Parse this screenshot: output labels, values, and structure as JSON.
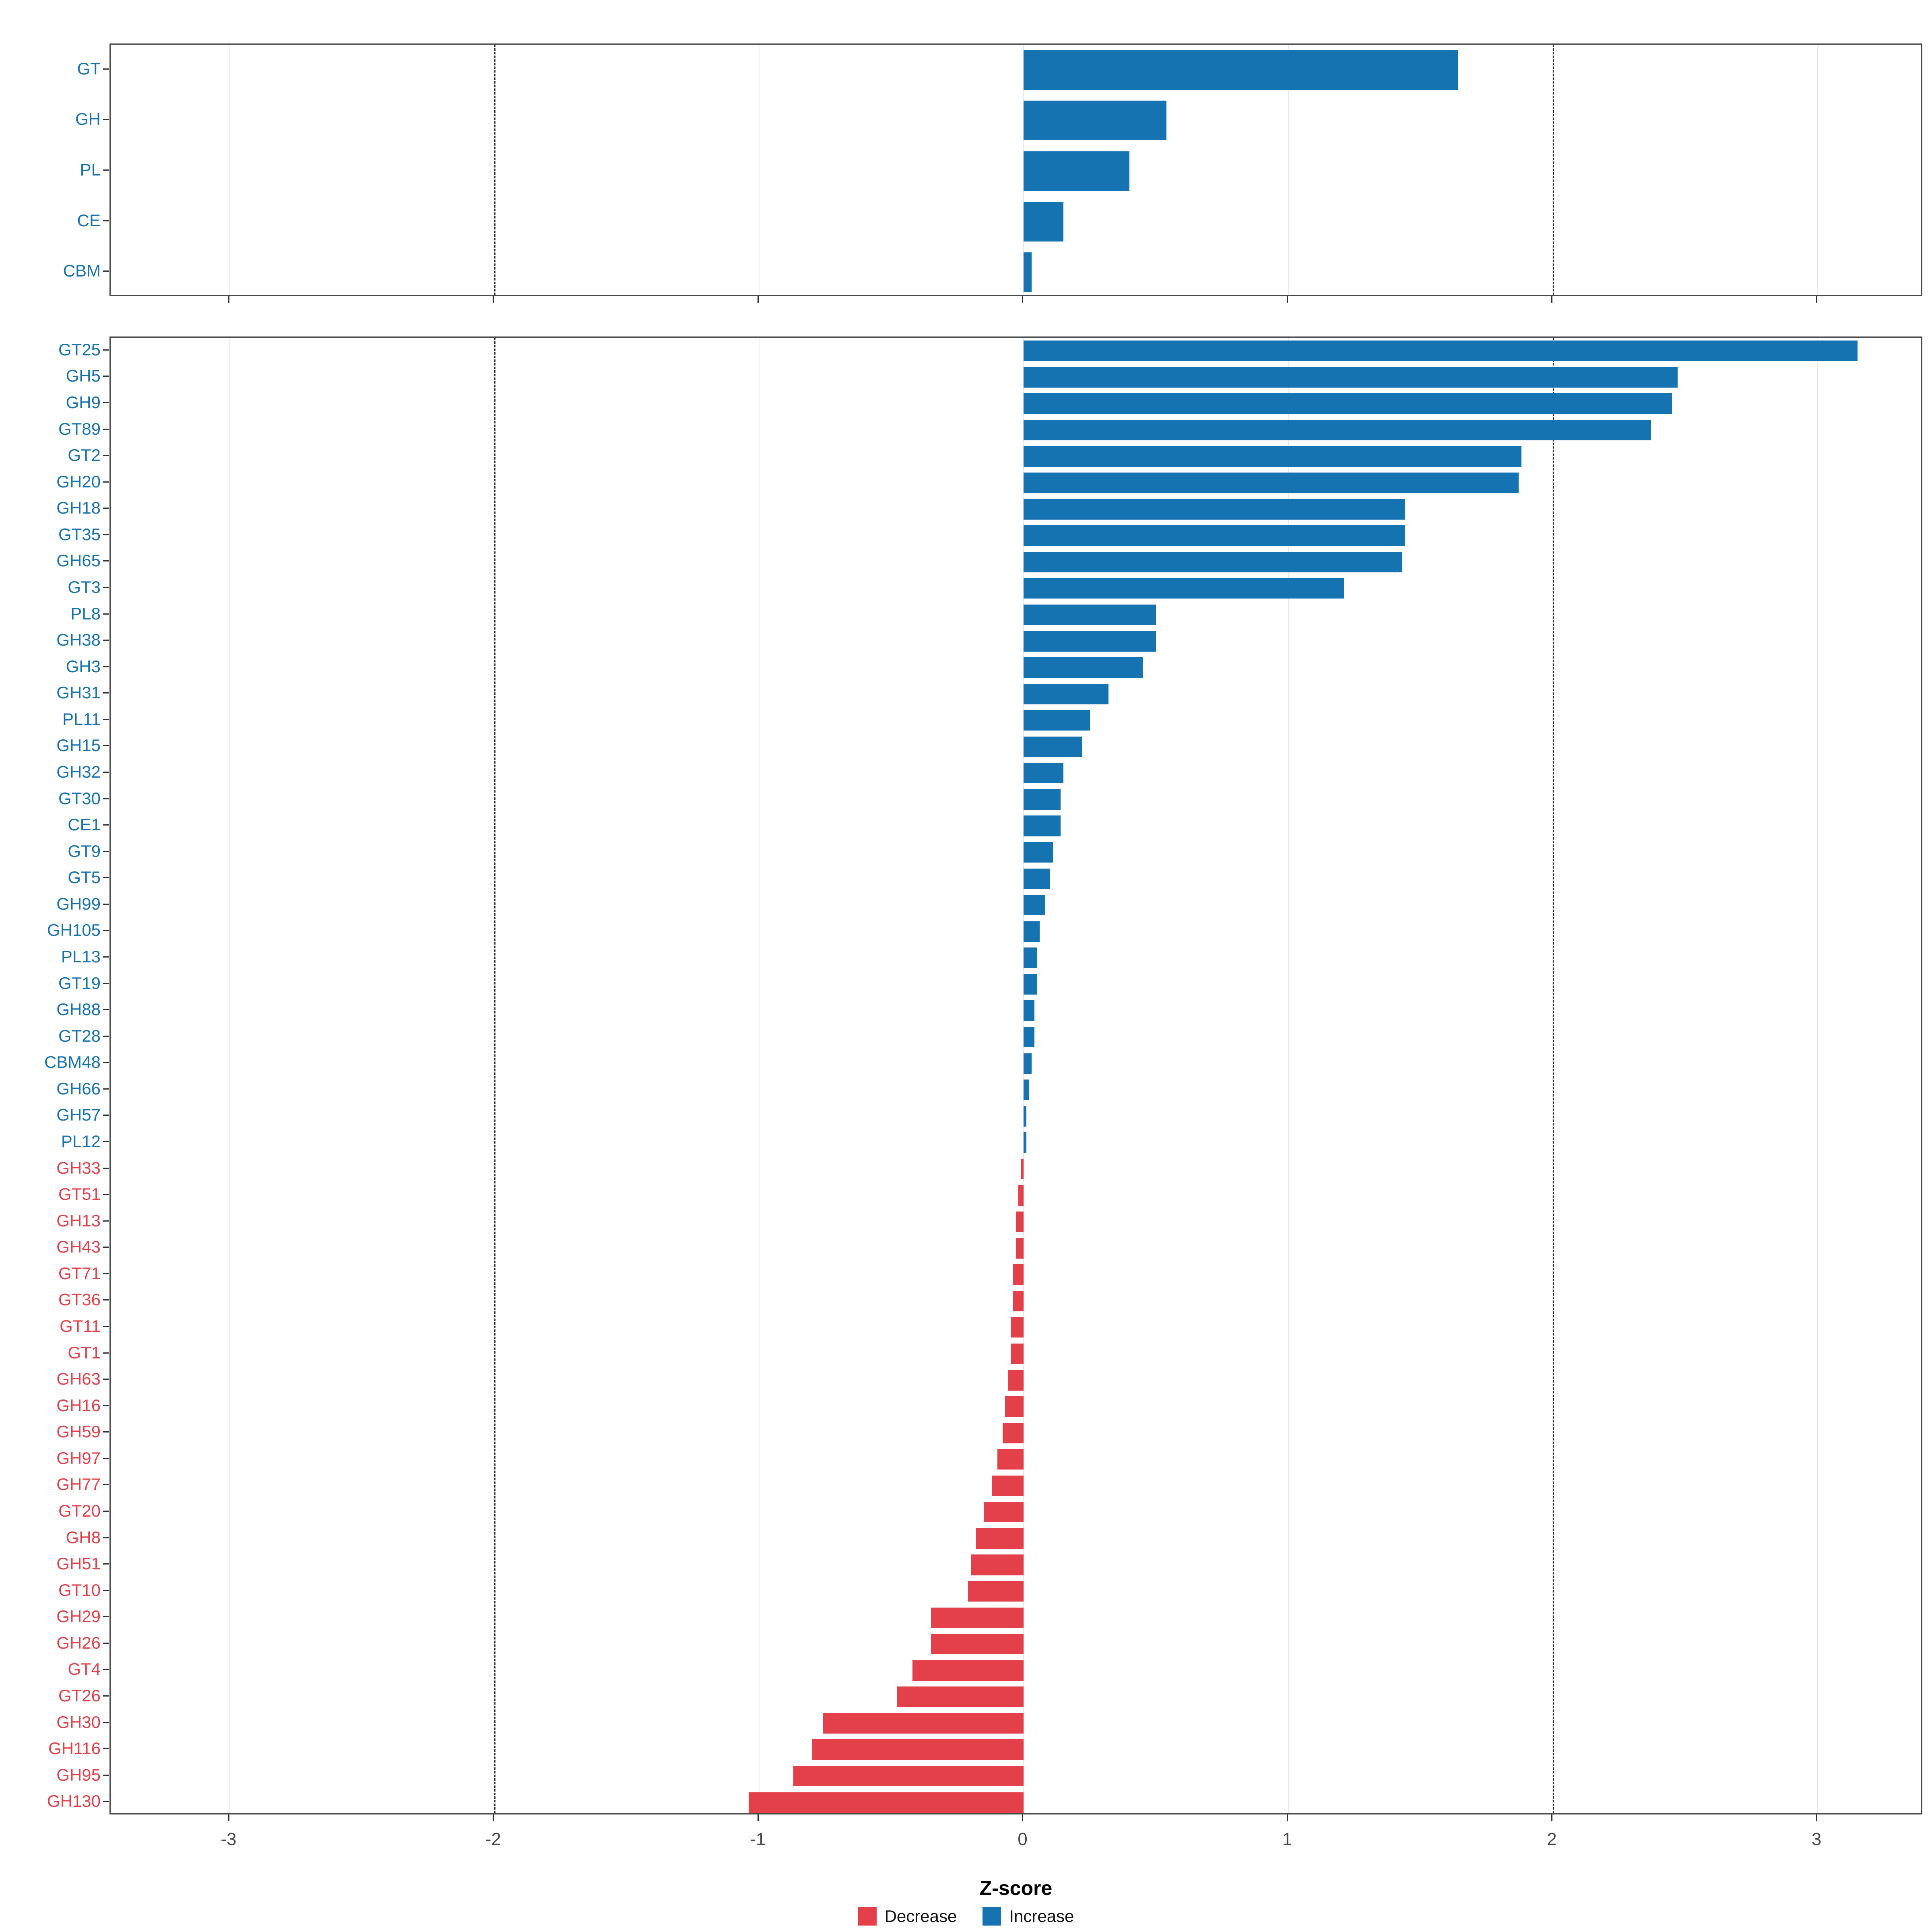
{
  "figure": {
    "x_axis": {
      "title": "Z-score",
      "tick_labels": [
        "-3",
        "-2",
        "-1",
        "0",
        "1",
        "2",
        "3"
      ],
      "tick_values": [
        -3,
        -2,
        -1,
        0,
        1,
        2,
        3
      ],
      "xlim": [
        -3.45,
        3.4
      ],
      "dashed_lines": [
        -2,
        2
      ]
    },
    "legend": {
      "items": [
        {
          "label": "Decrease",
          "color": "#E4404A"
        },
        {
          "label": "Increase",
          "color": "#1673B2"
        }
      ]
    },
    "colors": {
      "increase": "#1673B2",
      "decrease": "#E4404A"
    }
  },
  "chart_data": [
    {
      "type": "bar",
      "orientation": "horizontal",
      "panel": "cazyme-class",
      "categories": [
        "GT",
        "GH",
        "PL",
        "CE",
        "CBM"
      ],
      "values": [
        1.64,
        0.54,
        0.4,
        0.15,
        0.03
      ],
      "xlim": [
        -3.45,
        3.4
      ],
      "xlabel": "Z-score",
      "grid": true,
      "legend_position": "bottom"
    },
    {
      "type": "bar",
      "orientation": "horizontal",
      "panel": "cazyme-family",
      "categories": [
        "GT25",
        "GH5",
        "GH9",
        "GT89",
        "GT2",
        "GH20",
        "GH18",
        "GT35",
        "GH65",
        "GT3",
        "PL8",
        "GH38",
        "GH3",
        "GH31",
        "PL11",
        "GH15",
        "GH32",
        "GT30",
        "CE1",
        "GT9",
        "GT5",
        "GH99",
        "GH105",
        "PL13",
        "GT19",
        "GH88",
        "GT28",
        "CBM48",
        "GH66",
        "GH57",
        "PL12",
        "GH33",
        "GT51",
        "GH13",
        "GH43",
        "GT71",
        "GT36",
        "GT11",
        "GT1",
        "GH63",
        "GH16",
        "GH59",
        "GH97",
        "GH77",
        "GT20",
        "GH8",
        "GH51",
        "GT10",
        "GH29",
        "GH26",
        "GT4",
        "GT26",
        "GH30",
        "GH116",
        "GH95",
        "GH130"
      ],
      "values": [
        3.15,
        2.47,
        2.45,
        2.37,
        1.88,
        1.87,
        1.44,
        1.44,
        1.43,
        1.21,
        0.5,
        0.5,
        0.45,
        0.32,
        0.25,
        0.22,
        0.15,
        0.14,
        0.14,
        0.11,
        0.1,
        0.08,
        0.06,
        0.05,
        0.05,
        0.04,
        0.04,
        0.03,
        0.02,
        0.01,
        0.01,
        -0.01,
        -0.02,
        -0.03,
        -0.03,
        -0.04,
        -0.04,
        -0.05,
        -0.05,
        -0.06,
        -0.07,
        -0.08,
        -0.1,
        -0.12,
        -0.15,
        -0.18,
        -0.2,
        -0.21,
        -0.35,
        -0.35,
        -0.42,
        -0.48,
        -0.76,
        -0.8,
        -0.87,
        -1.04
      ],
      "xlim": [
        -3.45,
        3.4
      ],
      "xlabel": "Z-score",
      "grid": true,
      "legend_position": "bottom"
    }
  ]
}
